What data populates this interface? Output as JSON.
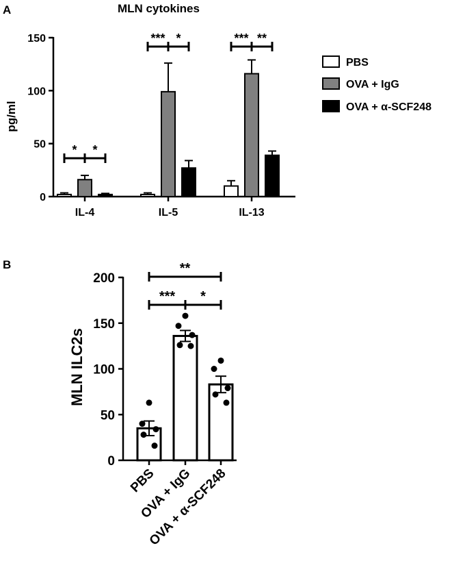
{
  "chart_data": [
    {
      "panel_label": "A",
      "type": "bar",
      "title": "MLN cytokines",
      "ylabel": "pg/ml",
      "xlabel": "",
      "ylim": [
        0,
        150
      ],
      "yticks": [
        0,
        50,
        100,
        150
      ],
      "categories": [
        "IL-4",
        "IL-5",
        "IL-13"
      ],
      "series": [
        {
          "name": "PBS",
          "color": "#ffffff",
          "values": [
            2,
            2,
            10
          ],
          "errors": [
            1.5,
            1.5,
            5
          ]
        },
        {
          "name": "OVA + IgG",
          "color": "#808080",
          "values": [
            16,
            99,
            116
          ],
          "errors": [
            4,
            27,
            13
          ]
        },
        {
          "name": "OVA + α-SCF248",
          "color": "#000000",
          "values": [
            2,
            27,
            39
          ],
          "errors": [
            1,
            7,
            4
          ]
        }
      ],
      "legend_position": "right",
      "significance": [
        {
          "category": 0,
          "from": 0,
          "to": 1,
          "label": "*"
        },
        {
          "category": 0,
          "from": 1,
          "to": 2,
          "label": "*"
        },
        {
          "category": 1,
          "from": 0,
          "to": 1,
          "label": "***"
        },
        {
          "category": 1,
          "from": 1,
          "to": 2,
          "label": "*"
        },
        {
          "category": 2,
          "from": 0,
          "to": 1,
          "label": "***"
        },
        {
          "category": 2,
          "from": 1,
          "to": 2,
          "label": "**"
        }
      ]
    },
    {
      "panel_label": "B",
      "type": "bar",
      "title": "",
      "ylabel": "MLN ILC2s",
      "xlabel": "",
      "ylim": [
        0,
        200
      ],
      "yticks": [
        0,
        50,
        100,
        150,
        200
      ],
      "categories": [
        "PBS",
        "OVA + IgG",
        "OVA + α-SCF248"
      ],
      "values": [
        35,
        136,
        83
      ],
      "errors": [
        8,
        6,
        9
      ],
      "points": [
        [
          63,
          40,
          34,
          28,
          16
        ],
        [
          158,
          147,
          137,
          126,
          125
        ],
        [
          109,
          100,
          79,
          72,
          63
        ]
      ],
      "significance": [
        {
          "from": 0,
          "to": 1,
          "label": "***"
        },
        {
          "from": 1,
          "to": 2,
          "label": "*"
        },
        {
          "from": 0,
          "to": 2,
          "label": "**"
        }
      ]
    }
  ]
}
